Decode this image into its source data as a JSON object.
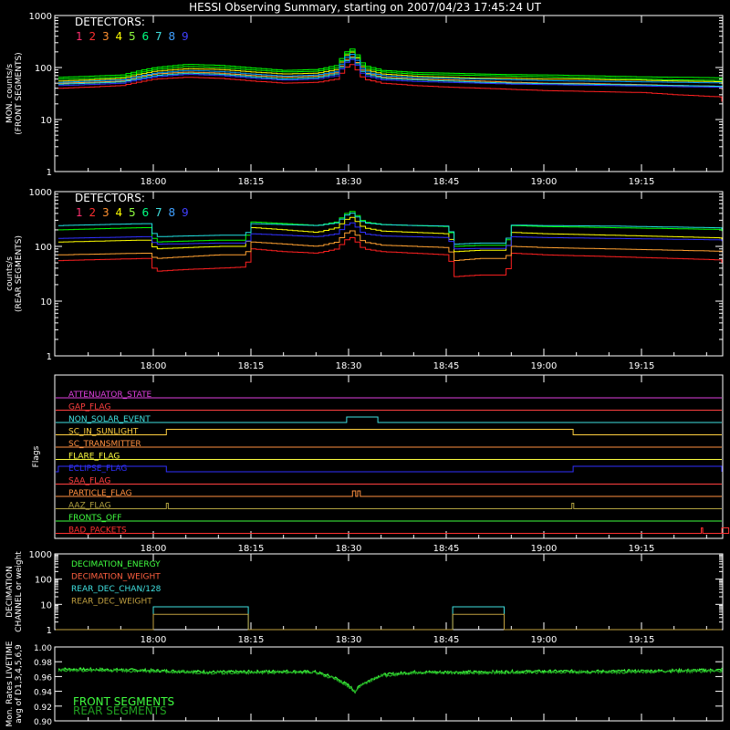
{
  "title": "HESSI Observing Summary, starting on 2007/04/23 17:45:24 UT",
  "time_ticks": [
    "18:00",
    "18:15",
    "18:30",
    "18:45",
    "19:00",
    "19:15"
  ],
  "detector_colors": [
    "#ff2020",
    "#ff2020",
    "#ffa030",
    "#ffff00",
    "#00ff00",
    "#00ff00",
    "#20e0e0",
    "#00a0ff",
    "#3030ff"
  ],
  "legend_detectors": {
    "title": "DETECTORS:",
    "numbers": [
      "1",
      "2",
      "3",
      "4",
      "5",
      "6",
      "7",
      "8",
      "9"
    ],
    "colors": [
      "#ff3070",
      "#ff3030",
      "#ff9030",
      "#ffff00",
      "#90ff40",
      "#00ff80",
      "#40e0e0",
      "#40a0ff",
      "#4040ff"
    ]
  },
  "panel_front": {
    "ylabel_1": "MON. counts/s",
    "ylabel_2": "(FRONT SEGMENTS)",
    "y_ticks": [
      "1",
      "10",
      "100",
      "1000"
    ]
  },
  "panel_rear": {
    "ylabel_1": "counts/s",
    "ylabel_2": "(REAR SEGMENTS)",
    "y_ticks": [
      "1",
      "10",
      "100",
      "1000"
    ]
  },
  "panel_flags": {
    "ylabel": "Flags",
    "flags": [
      {
        "label": "ATTENUATOR_STATE",
        "color": "#e040e0"
      },
      {
        "label": "GAP_FLAG",
        "color": "#ff4040"
      },
      {
        "label": "NON_SOLAR_EVENT",
        "color": "#40e0e0"
      },
      {
        "label": "SC_IN_SUNLIGHT",
        "color": "#ffd040"
      },
      {
        "label": "SC_TRANSMITTER",
        "color": "#ff9040"
      },
      {
        "label": "FLARE_FLAG",
        "color": "#ffff40"
      },
      {
        "label": "ECLIPSE_FLAG",
        "color": "#3030ff"
      },
      {
        "label": "SAA_FLAG",
        "color": "#ff4040"
      },
      {
        "label": "PARTICLE_FLAG",
        "color": "#ff9040"
      },
      {
        "label": "AAZ_FLAG",
        "color": "#b0a040"
      },
      {
        "label": "FRONTS_OFF",
        "color": "#40ff40"
      },
      {
        "label": "BAD_PACKETS",
        "color": "#ff3030"
      }
    ]
  },
  "panel_decimation": {
    "ylabel_1": "DECIMATION",
    "ylabel_2": "CHANNEL or weight",
    "y_ticks": [
      "1",
      "10",
      "100",
      "1000"
    ],
    "legend": [
      {
        "label": "DECIMATION_ENERGY",
        "color": "#40ff40"
      },
      {
        "label": "DECIMATION_WEIGHT",
        "color": "#ff6040"
      },
      {
        "label": "REAR_DEC_CHAN/128",
        "color": "#40e0e0"
      },
      {
        "label": "REAR_DEC_WEIGHT",
        "color": "#c0a040"
      }
    ]
  },
  "panel_livetime": {
    "ylabel_1": "Mon. Rates LIVETIME",
    "ylabel_2": "avg of D1,3,4,5,6,9",
    "y_ticks": [
      "0.90",
      "0.92",
      "0.94",
      "0.96",
      "0.98",
      "1.00"
    ],
    "legend": [
      {
        "label": "FRONT SEGMENTS",
        "color": "#40ff40"
      },
      {
        "label": "REAR SEGMENTS",
        "color": "#20a020"
      }
    ]
  },
  "chart_data": [
    {
      "type": "line",
      "panel": "front",
      "xlabel": "",
      "ylabel": "MON. counts/s (FRONT SEGMENTS)",
      "yscale": "log",
      "ylim": [
        1,
        1000
      ],
      "xlim_minutes_after_1800": [
        -14.6,
        40.8
      ],
      "x_minutes_after_1800": [
        -14.6,
        -10,
        -5,
        0,
        5,
        10,
        15,
        20,
        25,
        28,
        30,
        32,
        35,
        40,
        45,
        50,
        55,
        60,
        65,
        70,
        75,
        80,
        85,
        90,
        95,
        100
      ],
      "series": [
        {
          "name": "1",
          "values": [
            40,
            42,
            45,
            60,
            65,
            62,
            55,
            50,
            52,
            60,
            120,
            60,
            50,
            45,
            42,
            40,
            38,
            36,
            35,
            34,
            33,
            30,
            28,
            26,
            24,
            22
          ]
        },
        {
          "name": "3",
          "values": [
            50,
            52,
            55,
            75,
            82,
            78,
            70,
            65,
            68,
            80,
            170,
            80,
            65,
            60,
            58,
            55,
            52,
            50,
            50,
            48,
            47,
            45,
            44,
            42,
            40,
            38
          ]
        },
        {
          "name": "4",
          "values": [
            55,
            58,
            62,
            85,
            95,
            92,
            82,
            75,
            78,
            92,
            210,
            92,
            75,
            68,
            65,
            62,
            62,
            60,
            60,
            58,
            57,
            55,
            54,
            52,
            50,
            48
          ]
        },
        {
          "name": "5",
          "values": [
            65,
            68,
            72,
            100,
            115,
            110,
            98,
            88,
            92,
            110,
            240,
            110,
            88,
            80,
            78,
            75,
            73,
            72,
            70,
            68,
            66,
            65,
            64,
            62,
            60,
            60
          ]
        },
        {
          "name": "6",
          "values": [
            60,
            62,
            66,
            92,
            105,
            100,
            90,
            82,
            85,
            100,
            220,
            100,
            82,
            74,
            72,
            70,
            68,
            66,
            64,
            62,
            60,
            58,
            57,
            56,
            55,
            55
          ]
        },
        {
          "name": "7",
          "values": [
            48,
            50,
            53,
            70,
            78,
            74,
            66,
            60,
            64,
            76,
            160,
            76,
            62,
            58,
            55,
            52,
            50,
            49,
            48,
            47,
            46,
            45,
            44,
            43,
            42,
            42
          ]
        },
        {
          "name": "8",
          "values": [
            52,
            55,
            58,
            78,
            88,
            84,
            75,
            68,
            72,
            85,
            190,
            85,
            70,
            64,
            62,
            60,
            58,
            56,
            55,
            54,
            53,
            52,
            51,
            50,
            50,
            50
          ]
        },
        {
          "name": "9",
          "values": [
            45,
            47,
            50,
            66,
            74,
            70,
            62,
            57,
            60,
            70,
            150,
            70,
            58,
            54,
            52,
            50,
            48,
            47,
            46,
            45,
            44,
            43,
            42,
            41,
            40,
            40
          ]
        }
      ]
    },
    {
      "type": "line",
      "panel": "rear",
      "xlabel": "",
      "ylabel": "counts/s (REAR SEGMENTS)",
      "yscale": "log",
      "ylim": [
        1,
        1000
      ],
      "x_minutes_after_1800": [
        -14.6,
        -2,
        -1,
        0,
        5,
        10,
        14,
        15,
        20,
        25,
        28,
        30,
        32,
        35,
        40,
        45,
        46,
        50,
        54,
        55,
        60,
        70,
        80,
        90,
        100
      ],
      "series": [
        {
          "name": "1",
          "values": [
            55,
            60,
            60,
            35,
            38,
            40,
            42,
            90,
            80,
            75,
            90,
            150,
            90,
            80,
            75,
            70,
            28,
            30,
            30,
            75,
            70,
            65,
            60,
            55,
            50
          ]
        },
        {
          "name": "3",
          "values": [
            70,
            75,
            75,
            60,
            65,
            70,
            70,
            120,
            110,
            100,
            120,
            200,
            120,
            105,
            100,
            95,
            55,
            60,
            60,
            100,
            95,
            90,
            85,
            80,
            80
          ]
        },
        {
          "name": "4",
          "values": [
            120,
            130,
            130,
            90,
            95,
            100,
            100,
            220,
            200,
            180,
            220,
            350,
            220,
            190,
            180,
            170,
            80,
            85,
            85,
            180,
            170,
            160,
            150,
            140,
            130
          ]
        },
        {
          "name": "5",
          "values": [
            200,
            220,
            220,
            120,
            125,
            130,
            130,
            280,
            260,
            240,
            280,
            450,
            280,
            250,
            240,
            230,
            100,
            105,
            105,
            240,
            230,
            220,
            210,
            200,
            190
          ]
        },
        {
          "name": "7",
          "values": [
            240,
            260,
            260,
            150,
            155,
            160,
            160,
            260,
            250,
            240,
            270,
            420,
            270,
            250,
            240,
            235,
            110,
            115,
            115,
            245,
            240,
            235,
            225,
            215,
            205
          ]
        },
        {
          "name": "9",
          "values": [
            140,
            150,
            150,
            110,
            112,
            115,
            115,
            170,
            160,
            150,
            170,
            280,
            170,
            155,
            150,
            145,
            90,
            92,
            92,
            150,
            145,
            140,
            135,
            130,
            125
          ]
        }
      ]
    },
    {
      "type": "line",
      "panel": "flags",
      "ylabel": "Flags",
      "flag_states": [
        {
          "name": "ATTENUATOR_STATE",
          "segments": []
        },
        {
          "name": "GAP_FLAG",
          "segments": []
        },
        {
          "name": "NON_SOLAR_EVENT",
          "segments": [
            [
              29.7,
              34.5
            ]
          ]
        },
        {
          "name": "SC_IN_SUNLIGHT",
          "segments": [
            [
              2.0,
              64.5
            ]
          ]
        },
        {
          "name": "SC_TRANSMITTER",
          "segments": []
        },
        {
          "name": "FLARE_FLAG",
          "segments": []
        },
        {
          "name": "ECLIPSE_FLAG",
          "segments": [
            [
              -14.6,
              2.0
            ],
            [
              64.5,
              100
            ]
          ]
        },
        {
          "name": "SAA_FLAG",
          "segments": []
        },
        {
          "name": "PARTICLE_FLAG",
          "segments": [
            [
              30.6,
              31.1
            ],
            [
              31.4,
              31.8
            ]
          ]
        },
        {
          "name": "AAZ_FLAG",
          "segments": [
            [
              2.0,
              2.3
            ],
            [
              64.3,
              64.6
            ]
          ]
        },
        {
          "name": "FRONTS_OFF",
          "segments": []
        },
        {
          "name": "BAD_PACKETS",
          "segments": [
            [
              84.2,
              84.4
            ],
            [
              88.4,
              88.6
            ]
          ]
        }
      ]
    },
    {
      "type": "line",
      "panel": "decimation",
      "yscale": "log",
      "ylim": [
        1,
        1000
      ],
      "series": [
        {
          "name": "REAR_DEC_CHAN/128",
          "segments": [
            [
              0,
              14.6,
              8
            ],
            [
              46.0,
              53.9,
              8
            ]
          ],
          "baseline": 1
        },
        {
          "name": "REAR_DEC_WEIGHT",
          "segments": [
            [
              0,
              14.6,
              4
            ],
            [
              46.0,
              53.9,
              4
            ]
          ],
          "baseline": 1
        }
      ]
    },
    {
      "type": "line",
      "panel": "livetime",
      "ylim": [
        0.9,
        1.0
      ],
      "x_minutes_after_1800": [
        -14.6,
        -5,
        0,
        10,
        20,
        25,
        28,
        30,
        31,
        32,
        35,
        40,
        50,
        60,
        70,
        80,
        90,
        100
      ],
      "series": [
        {
          "name": "FRONT SEGMENTS",
          "values": [
            0.97,
            0.969,
            0.968,
            0.966,
            0.967,
            0.966,
            0.958,
            0.948,
            0.94,
            0.95,
            0.962,
            0.966,
            0.966,
            0.967,
            0.967,
            0.968,
            0.969,
            0.97
          ]
        },
        {
          "name": "REAR SEGMENTS",
          "values": [
            0.969,
            0.968,
            0.967,
            0.965,
            0.966,
            0.965,
            0.957,
            0.947,
            0.939,
            0.949,
            0.961,
            0.965,
            0.965,
            0.966,
            0.966,
            0.967,
            0.968,
            0.969
          ]
        }
      ]
    }
  ]
}
